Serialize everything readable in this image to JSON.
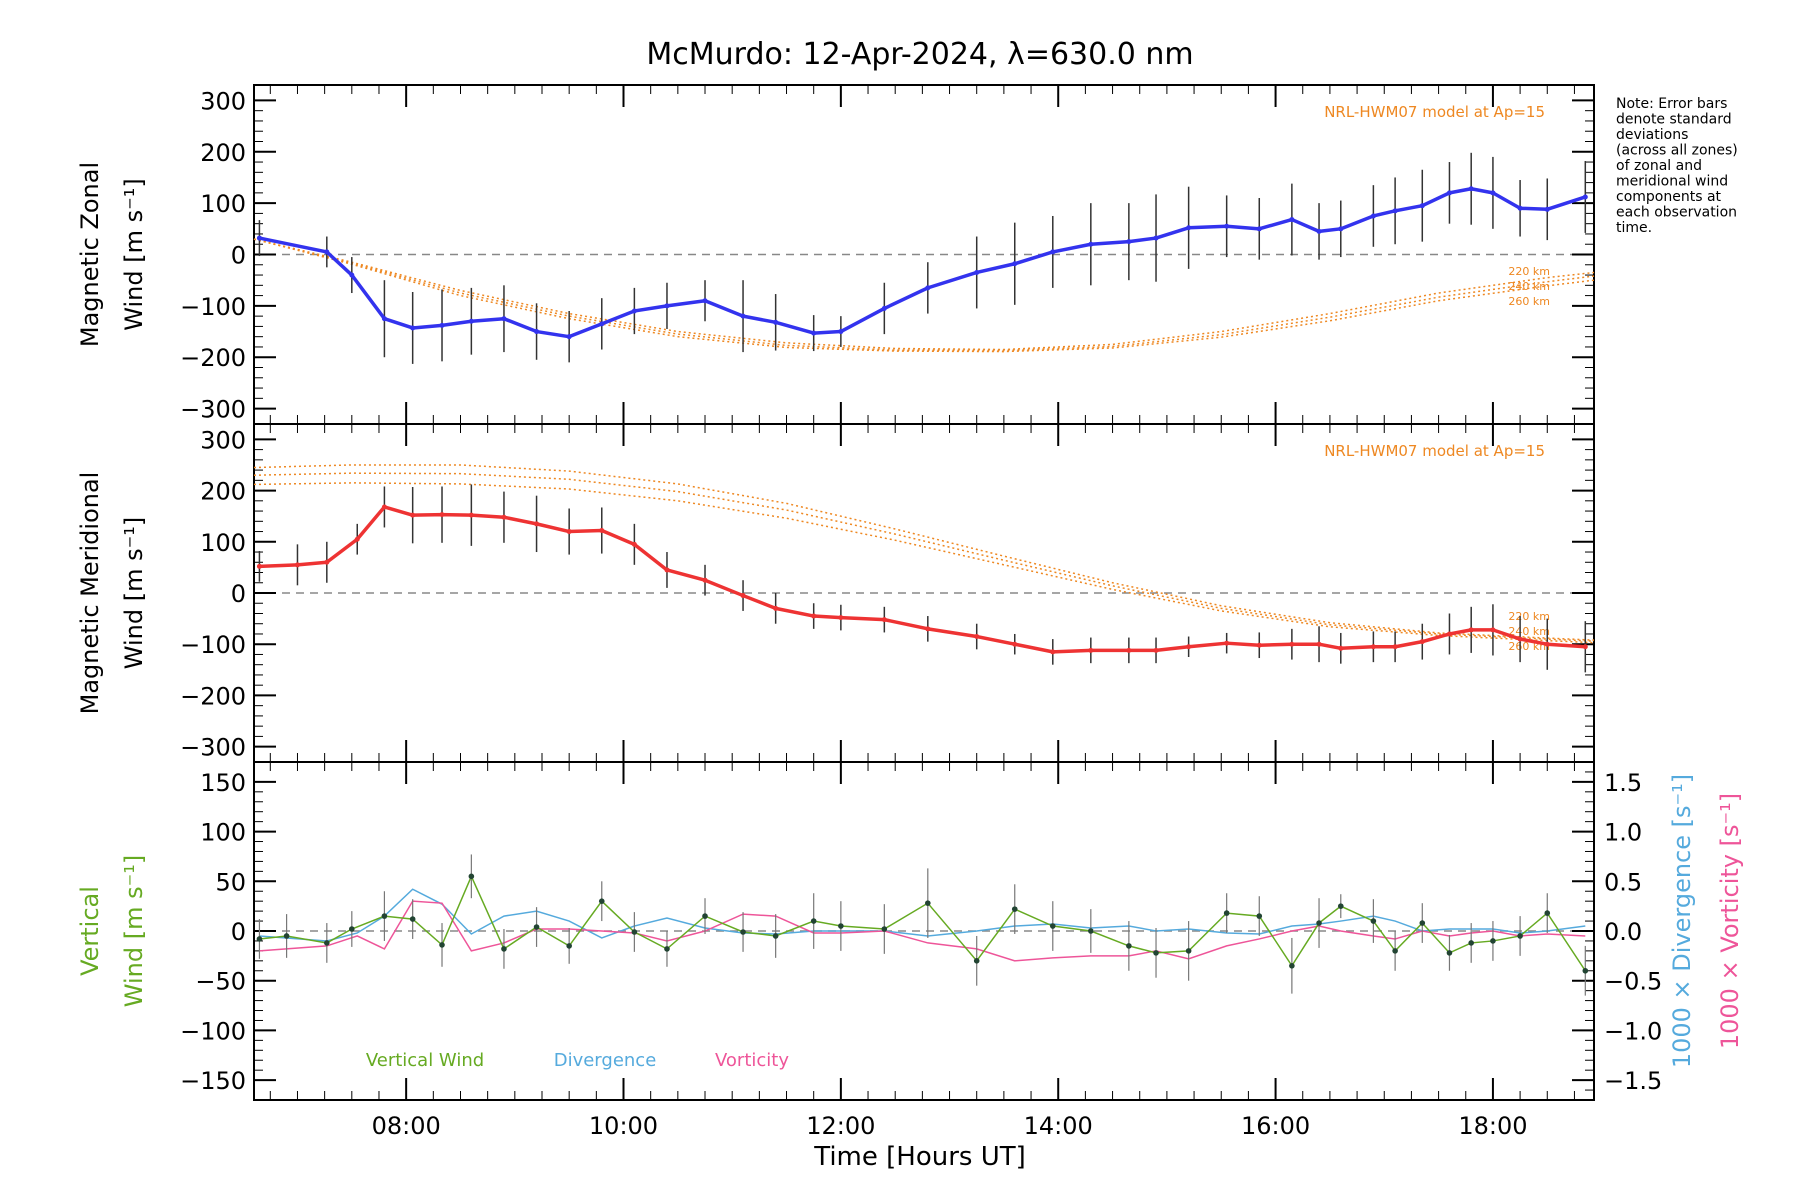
{
  "figure": {
    "title": "McMurdo: 12-Apr-2024, λ=630.0 nm",
    "xlabel": "Time [Hours UT]",
    "note": [
      "Note: Error bars",
      "denote standard",
      "deviations",
      "(across all zones)",
      "of zonal and",
      "meridional wind",
      "components at",
      "each observation",
      "time."
    ],
    "colors": {
      "zonal": "#3333ee",
      "meridional": "#ee3333",
      "model": "#ee8822",
      "vertical": "#66aa22",
      "divergence": "#55aadd",
      "vorticity": "#ee5599",
      "axis": "#000000",
      "zero_line": "#888888",
      "errorbar": "#333333"
    }
  },
  "chart_data": [
    {
      "type": "line",
      "panel": "zonal",
      "ylabel_lines": [
        "Magnetic Zonal",
        "Wind [m s⁻¹]"
      ],
      "xlim": [
        6.6,
        18.93
      ],
      "ylim": [
        -330,
        330
      ],
      "yticks": [
        -300,
        -200,
        -100,
        0,
        100,
        200,
        300
      ],
      "xticks": [
        8,
        10,
        12,
        14,
        16,
        18
      ],
      "xtick_labels": [
        "08:00",
        "10:00",
        "12:00",
        "14:00",
        "16:00",
        "18:00"
      ],
      "model_label": "NRL-HWM07 model at Ap=15",
      "model_altitudes": [
        "220 km",
        "240 km",
        "260 km"
      ],
      "model_x": [
        6.6,
        7.5,
        8.5,
        9.5,
        10.5,
        11.5,
        12.5,
        13.5,
        14.5,
        15.5,
        16.5,
        17.5,
        18.5,
        18.93
      ],
      "model_series": [
        {
          "name": "220 km",
          "values": [
            30,
            -15,
            -70,
            -115,
            -150,
            -172,
            -183,
            -185,
            -175,
            -150,
            -115,
            -75,
            -45,
            -35
          ]
        },
        {
          "name": "240 km",
          "values": [
            30,
            -17,
            -75,
            -120,
            -155,
            -177,
            -186,
            -187,
            -179,
            -156,
            -122,
            -83,
            -53,
            -42
          ]
        },
        {
          "name": "260 km",
          "values": [
            30,
            -19,
            -80,
            -125,
            -160,
            -181,
            -188,
            -189,
            -182,
            -161,
            -129,
            -90,
            -61,
            -50
          ]
        }
      ],
      "x": [
        6.65,
        7.27,
        7.5,
        7.8,
        8.06,
        8.33,
        8.6,
        8.9,
        9.2,
        9.5,
        9.8,
        10.1,
        10.4,
        10.75,
        11.1,
        11.4,
        11.75,
        12.0,
        12.4,
        12.8,
        13.25,
        13.6,
        13.95,
        14.3,
        14.65,
        14.9,
        15.2,
        15.55,
        15.85,
        16.15,
        16.4,
        16.6,
        16.9,
        17.1,
        17.35,
        17.6,
        17.8,
        18.0,
        18.25,
        18.5,
        18.85
      ],
      "values": [
        32,
        5,
        -40,
        -125,
        -143,
        -138,
        -130,
        -125,
        -150,
        -160,
        -135,
        -110,
        -100,
        -90,
        -120,
        -132,
        -153,
        -150,
        -105,
        -65,
        -35,
        -18,
        5,
        20,
        25,
        32,
        52,
        55,
        50,
        68,
        45,
        50,
        75,
        85,
        95,
        120,
        128,
        120,
        90,
        88,
        112
      ],
      "errors": [
        35,
        30,
        35,
        75,
        70,
        70,
        65,
        65,
        55,
        50,
        50,
        45,
        45,
        40,
        70,
        55,
        35,
        30,
        50,
        50,
        70,
        80,
        70,
        80,
        75,
        85,
        80,
        60,
        60,
        70,
        55,
        55,
        60,
        65,
        70,
        60,
        70,
        70,
        55,
        60,
        70
      ]
    },
    {
      "type": "line",
      "panel": "meridional",
      "ylabel_lines": [
        "Magnetic Meridional",
        "Wind [m s⁻¹]"
      ],
      "xlim": [
        6.6,
        18.93
      ],
      "ylim": [
        -330,
        330
      ],
      "yticks": [
        -300,
        -200,
        -100,
        0,
        100,
        200,
        300
      ],
      "model_label": "NRL-HWM07 model at Ap=15",
      "model_altitudes": [
        "220 km",
        "240 km",
        "260 km"
      ],
      "model_x": [
        6.6,
        7.5,
        8.5,
        9.5,
        10.5,
        11.5,
        12.5,
        13.5,
        14.5,
        15.5,
        16.5,
        17.5,
        18.5,
        18.93
      ],
      "model_series": [
        {
          "name": "260 km",
          "values": [
            245,
            250,
            250,
            238,
            213,
            175,
            125,
            72,
            20,
            -25,
            -58,
            -78,
            -88,
            -92
          ]
        },
        {
          "name": "240 km",
          "values": [
            230,
            234,
            233,
            222,
            198,
            162,
            115,
            64,
            14,
            -30,
            -62,
            -80,
            -90,
            -94
          ]
        },
        {
          "name": "220 km",
          "values": [
            212,
            215,
            213,
            203,
            180,
            146,
            103,
            55,
            7,
            -35,
            -66,
            -83,
            -93,
            -97
          ]
        }
      ],
      "x": [
        6.65,
        7.0,
        7.27,
        7.55,
        7.8,
        8.06,
        8.33,
        8.6,
        8.9,
        9.2,
        9.5,
        9.8,
        10.1,
        10.4,
        10.75,
        11.1,
        11.4,
        11.75,
        12.0,
        12.4,
        12.8,
        13.25,
        13.6,
        13.95,
        14.3,
        14.65,
        14.9,
        15.2,
        15.55,
        15.85,
        16.15,
        16.4,
        16.6,
        16.9,
        17.1,
        17.35,
        17.6,
        17.8,
        18.0,
        18.25,
        18.5,
        18.85
      ],
      "values": [
        52,
        55,
        60,
        105,
        168,
        152,
        153,
        152,
        148,
        135,
        120,
        122,
        95,
        45,
        25,
        -5,
        -30,
        -45,
        -48,
        -52,
        -70,
        -85,
        -100,
        -115,
        -112,
        -112,
        -112,
        -105,
        -98,
        -102,
        -100,
        -100,
        -108,
        -105,
        -105,
        -95,
        -80,
        -72,
        -72,
        -90,
        -100,
        -105
      ],
      "errors": [
        30,
        40,
        40,
        30,
        40,
        55,
        55,
        60,
        50,
        55,
        45,
        45,
        40,
        35,
        30,
        30,
        30,
        25,
        25,
        25,
        25,
        25,
        20,
        25,
        25,
        25,
        25,
        20,
        20,
        25,
        30,
        35,
        30,
        30,
        30,
        35,
        40,
        45,
        50,
        45,
        50,
        50
      ]
    },
    {
      "type": "line",
      "panel": "vertical",
      "ylabel_lines": [
        "Vertical",
        "Wind [m s⁻¹]"
      ],
      "ylabel_right_divergence": "1000 × Divergence [s⁻¹]",
      "ylabel_right_vorticity": "1000 × Vorticity [s⁻¹]",
      "xlim": [
        6.6,
        18.93
      ],
      "ylim": [
        -170,
        170
      ],
      "yticks": [
        -150,
        -100,
        -50,
        0,
        50,
        100,
        150
      ],
      "y2lim": [
        -1.7,
        1.7
      ],
      "y2ticks": [
        -1.5,
        -1.0,
        -0.5,
        0.0,
        0.5,
        1.0,
        1.5
      ],
      "y2tick_labels": [
        "−1.5",
        "−1.0",
        "−0.5",
        "0.0",
        "0.5",
        "1.0",
        "1.5"
      ],
      "xticks": [
        8,
        10,
        12,
        14,
        16,
        18
      ],
      "xtick_labels": [
        "08:00",
        "10:00",
        "12:00",
        "14:00",
        "16:00",
        "18:00"
      ],
      "legend": [
        "Vertical Wind",
        "Divergence",
        "Vorticity"
      ],
      "vertical": {
        "name": "Vertical Wind",
        "x": [
          6.65,
          6.9,
          7.27,
          7.5,
          7.8,
          8.06,
          8.33,
          8.6,
          8.9,
          9.2,
          9.5,
          9.8,
          10.1,
          10.4,
          10.75,
          11.1,
          11.4,
          11.75,
          12.0,
          12.4,
          12.8,
          13.25,
          13.6,
          13.95,
          14.3,
          14.65,
          14.9,
          15.2,
          15.55,
          15.85,
          16.15,
          16.4,
          16.6,
          16.9,
          17.1,
          17.35,
          17.6,
          17.8,
          18.0,
          18.25,
          18.5,
          18.85
        ],
        "values": [
          -8,
          -5,
          -12,
          2,
          15,
          12,
          -14,
          55,
          -18,
          4,
          -15,
          30,
          -1,
          -18,
          15,
          -1,
          -5,
          10,
          5,
          2,
          28,
          -30,
          22,
          5,
          0,
          -15,
          -22,
          -20,
          18,
          15,
          -35,
          8,
          25,
          10,
          -20,
          8,
          -22,
          -12,
          -10,
          -5,
          18,
          -40
        ],
        "errors": [
          20,
          22,
          20,
          18,
          25,
          20,
          22,
          22,
          20,
          20,
          18,
          20,
          20,
          18,
          18,
          20,
          22,
          28,
          25,
          25,
          35,
          25,
          25,
          25,
          22,
          25,
          25,
          30,
          20,
          20,
          28,
          25,
          12,
          22,
          20,
          20,
          18,
          20,
          20,
          20,
          20,
          25
        ]
      },
      "divergence": {
        "name": "Divergence",
        "x": [
          6.65,
          7.27,
          7.55,
          7.8,
          8.06,
          8.33,
          8.6,
          8.9,
          9.2,
          9.5,
          9.8,
          10.1,
          10.4,
          10.75,
          11.1,
          11.4,
          11.75,
          12.0,
          12.4,
          12.8,
          13.25,
          13.6,
          13.95,
          14.3,
          14.65,
          14.9,
          15.2,
          15.55,
          15.85,
          16.15,
          16.4,
          16.6,
          16.9,
          17.1,
          17.35,
          17.6,
          17.8,
          18.0,
          18.25,
          18.5,
          18.85
        ],
        "values": [
          -0.05,
          -0.1,
          -0.02,
          0.15,
          0.42,
          0.27,
          -0.03,
          0.15,
          0.2,
          0.1,
          -0.07,
          0.05,
          0.13,
          0.03,
          -0.02,
          -0.03,
          0.0,
          0.0,
          0.0,
          -0.05,
          0.0,
          0.05,
          0.07,
          0.03,
          0.05,
          0.0,
          0.02,
          -0.02,
          -0.03,
          0.05,
          0.07,
          0.1,
          0.15,
          0.1,
          0.0,
          0.02,
          0.02,
          0.02,
          -0.02,
          0.0,
          0.05
        ]
      },
      "vorticity": {
        "name": "Vorticity",
        "x": [
          6.65,
          7.27,
          7.55,
          7.8,
          8.06,
          8.33,
          8.6,
          8.9,
          9.2,
          9.5,
          9.8,
          10.1,
          10.4,
          10.75,
          11.1,
          11.4,
          11.75,
          12.0,
          12.4,
          12.8,
          13.25,
          13.6,
          13.95,
          14.3,
          14.65,
          14.9,
          15.2,
          15.55,
          15.85,
          16.15,
          16.4,
          16.6,
          16.9,
          17.1,
          17.35,
          17.6,
          17.8,
          18.0,
          18.25,
          18.5,
          18.85
        ],
        "values": [
          -0.2,
          -0.15,
          -0.05,
          -0.18,
          0.3,
          0.28,
          -0.2,
          -0.12,
          0.02,
          0.02,
          0.0,
          -0.02,
          -0.1,
          0.0,
          0.17,
          0.15,
          -0.02,
          -0.02,
          0.0,
          -0.12,
          -0.18,
          -0.3,
          -0.27,
          -0.25,
          -0.25,
          -0.2,
          -0.28,
          -0.15,
          -0.08,
          0.0,
          0.05,
          0.0,
          -0.05,
          -0.08,
          0.0,
          -0.05,
          -0.02,
          0.0,
          -0.05,
          -0.03,
          -0.05
        ]
      }
    }
  ]
}
